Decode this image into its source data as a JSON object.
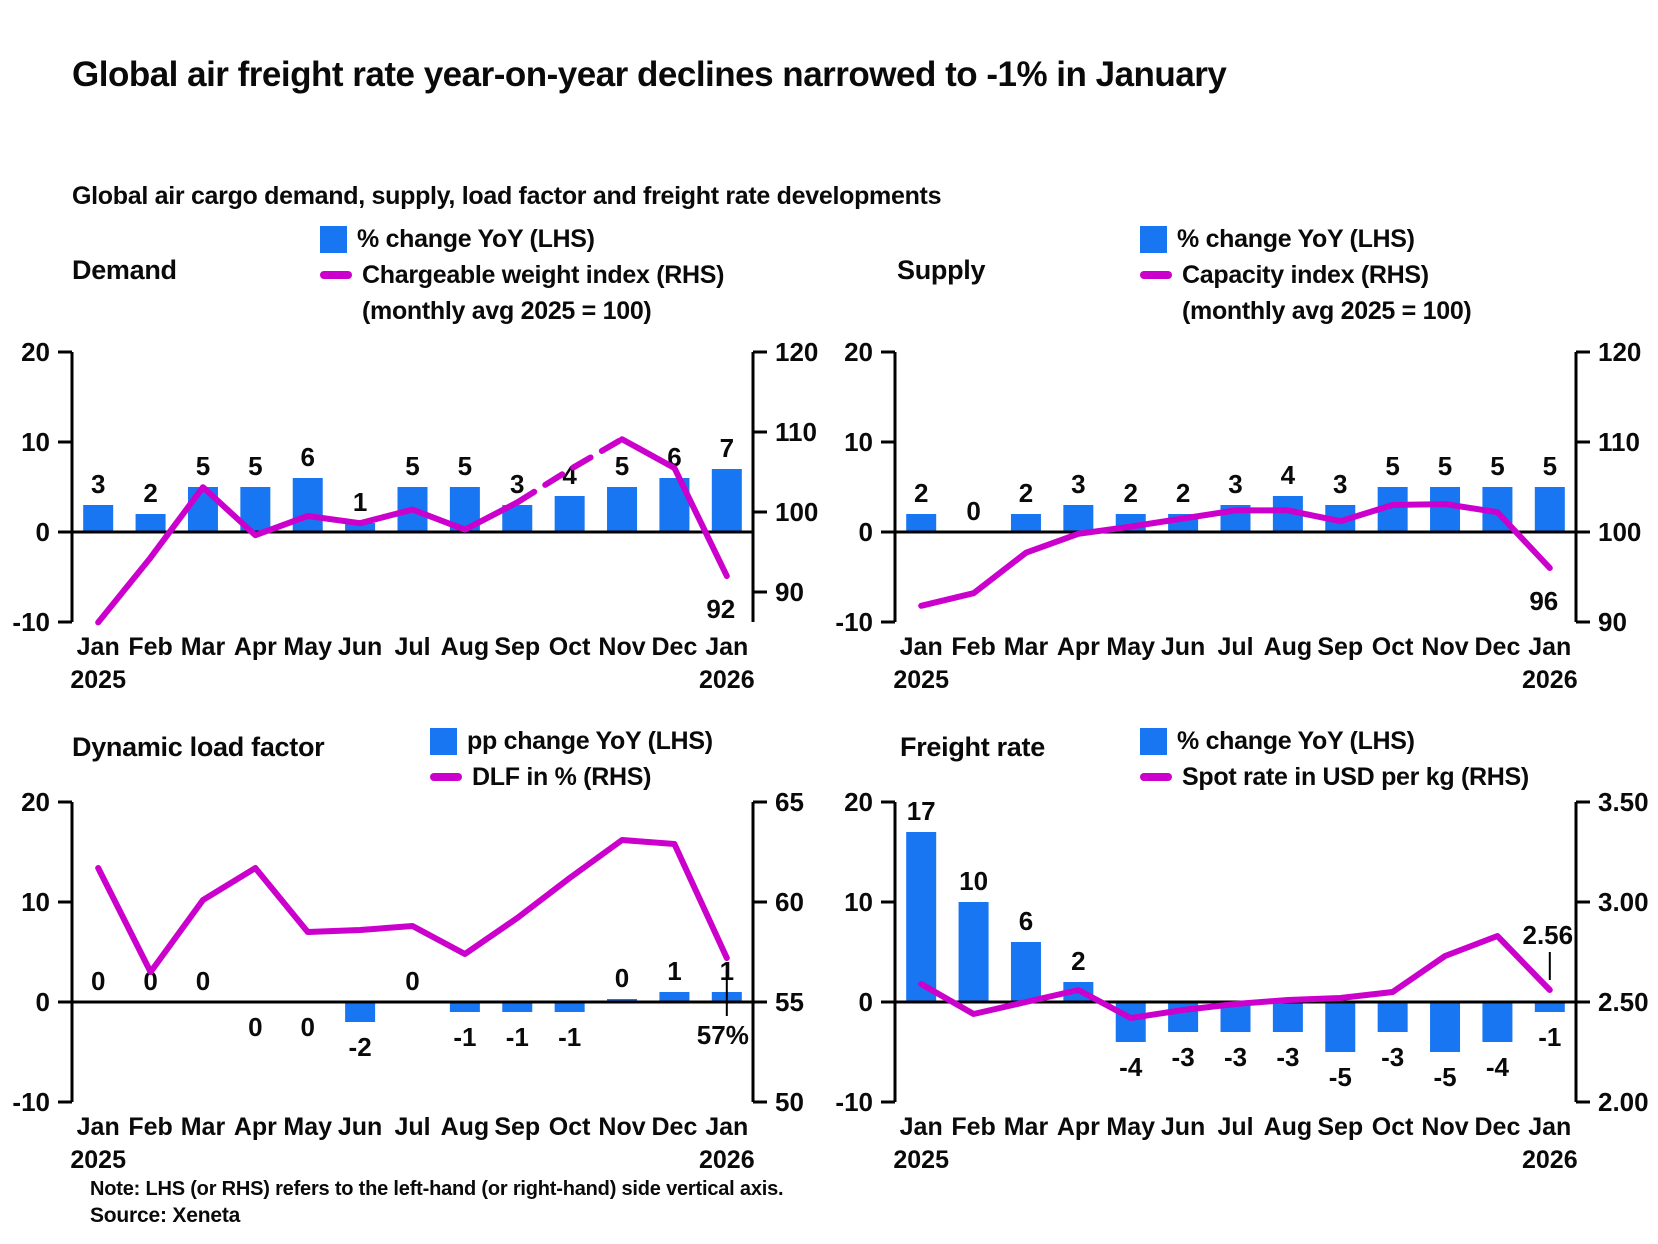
{
  "page": {
    "title": "Global air freight rate year-on-year declines narrowed to -1% in January",
    "subtitle": "Global air cargo demand, supply, load factor and freight rate developments",
    "note": "Note: LHS (or RHS) refers to the left-hand (or right-hand) side vertical axis.",
    "source": "Source: Xeneta"
  },
  "colors": {
    "bar": "#1876F2",
    "line": "#CC00CC",
    "axis": "#000000",
    "text": "#0A0A0A"
  },
  "chart_data": [
    {
      "id": "demand",
      "type": "bar+line",
      "title": "Demand",
      "legend": {
        "bar": "% change YoY (LHS)",
        "line": "Chargeable weight index (RHS)",
        "line_note": "(monthly avg 2025 = 100)"
      },
      "categories": [
        "Jan",
        "Feb",
        "Mar",
        "Apr",
        "May",
        "Jun",
        "Jul",
        "Aug",
        "Sep",
        "Oct",
        "Nov",
        "Dec",
        "Jan"
      ],
      "year_start": "2025",
      "year_end": "2026",
      "bars": {
        "name": "% change YoY (LHS)",
        "values": [
          3,
          2,
          5,
          5,
          6,
          1,
          5,
          5,
          3,
          4,
          5,
          6,
          7
        ],
        "labels": [
          "3",
          "2",
          "5",
          "5",
          "6",
          "1",
          "5",
          "5",
          "3",
          "4",
          "5",
          "6",
          "7"
        ],
        "label_below": [
          false,
          false,
          false,
          false,
          false,
          false,
          false,
          false,
          false,
          false,
          false,
          false,
          false
        ]
      },
      "line": {
        "name": "Chargeable weight index (RHS)",
        "values": [
          86.2,
          94.3,
          103.1,
          97.1,
          99.5,
          98.6,
          100.3,
          97.8,
          101.2,
          105.3,
          109.1,
          105.5,
          92
        ],
        "end_label": "92",
        "dashed_segment": [
          8,
          10
        ]
      },
      "lhs": {
        "ticks": [
          "20",
          "10",
          "0",
          "-10"
        ],
        "min": -10,
        "max": 20
      },
      "rhs": {
        "ticks": [
          "120",
          "110",
          "100",
          "90"
        ],
        "min": 90,
        "max": 120
      }
    },
    {
      "id": "supply",
      "type": "bar+line",
      "title": "Supply",
      "legend": {
        "bar": "% change YoY (LHS)",
        "line": "Capacity index (RHS)",
        "line_note": "(monthly avg 2025 = 100)"
      },
      "categories": [
        "Jan",
        "Feb",
        "Mar",
        "Apr",
        "May",
        "Jun",
        "Jul",
        "Aug",
        "Sep",
        "Oct",
        "Nov",
        "Dec",
        "Jan"
      ],
      "year_start": "2025",
      "year_end": "2026",
      "bars": {
        "name": "% change YoY (LHS)",
        "values": [
          2,
          0,
          2,
          3,
          2,
          2,
          3,
          4,
          3,
          5,
          5,
          5,
          5
        ],
        "labels": [
          "2",
          "0",
          "2",
          "3",
          "2",
          "2",
          "3",
          "4",
          "3",
          "5",
          "5",
          "5",
          "5"
        ],
        "label_below": [
          false,
          false,
          false,
          false,
          false,
          false,
          false,
          false,
          false,
          false,
          false,
          false,
          false
        ]
      },
      "line": {
        "name": "Capacity index (RHS)",
        "values": [
          91.8,
          93.2,
          97.7,
          99.8,
          100.6,
          101.5,
          102.4,
          102.4,
          101.2,
          103,
          103.1,
          102.2,
          96
        ],
        "end_label": "96"
      },
      "lhs": {
        "ticks": [
          "20",
          "10",
          "0",
          "-10"
        ],
        "min": -10,
        "max": 20
      },
      "rhs": {
        "ticks": [
          "120",
          "110",
          "100",
          "90"
        ],
        "min": 90,
        "max": 120
      }
    },
    {
      "id": "dlf",
      "type": "bar+line",
      "title": "Dynamic load factor",
      "legend": {
        "bar": "pp change YoY (LHS)",
        "line": "DLF in % (RHS)"
      },
      "categories": [
        "Jan",
        "Feb",
        "Mar",
        "Apr",
        "May",
        "Jun",
        "Jul",
        "Aug",
        "Sep",
        "Oct",
        "Nov",
        "Dec",
        "Jan"
      ],
      "year_start": "2025",
      "year_end": "2026",
      "bars": {
        "name": "pp change YoY (LHS)",
        "values": [
          0,
          0,
          0,
          0,
          0,
          -2,
          0,
          -1,
          -1,
          -1,
          0.3,
          1,
          1
        ],
        "labels": [
          "0",
          "0",
          "0",
          "0",
          "0",
          "-2",
          "0",
          "-1",
          "-1",
          "-1",
          "0",
          "1",
          "1"
        ],
        "label_below": [
          false,
          false,
          false,
          true,
          true,
          true,
          false,
          true,
          true,
          true,
          false,
          false,
          false
        ]
      },
      "line": {
        "name": "DLF in % (RHS)",
        "values": [
          61.7,
          56.5,
          60.1,
          61.7,
          58.5,
          58.6,
          58.8,
          57.4,
          59.2,
          61.2,
          63.1,
          62.9,
          57.2
        ],
        "end_label": "57%"
      },
      "lhs": {
        "ticks": [
          "20",
          "10",
          "0",
          "-10"
        ],
        "min": -10,
        "max": 20
      },
      "rhs": {
        "ticks": [
          "65",
          "60",
          "55",
          "50"
        ],
        "min": 50,
        "max": 65
      }
    },
    {
      "id": "freight",
      "type": "bar+line",
      "title": "Freight rate",
      "legend": {
        "bar": "% change YoY (LHS)",
        "line": "Spot rate in USD per kg (RHS)"
      },
      "categories": [
        "Jan",
        "Feb",
        "Mar",
        "Apr",
        "May",
        "Jun",
        "Jul",
        "Aug",
        "Sep",
        "Oct",
        "Nov",
        "Dec",
        "Jan"
      ],
      "year_start": "2025",
      "year_end": "2026",
      "bars": {
        "name": "% change YoY (LHS)",
        "values": [
          17,
          10,
          6,
          2,
          -4,
          -3,
          -3,
          -3,
          -5,
          -3,
          -5,
          -4,
          -1
        ],
        "labels": [
          "17",
          "10",
          "6",
          "2",
          "-4",
          "-3",
          "-3",
          "-3",
          "-5",
          "-3",
          "-5",
          "-4",
          "-1"
        ],
        "label_below": [
          false,
          false,
          false,
          false,
          true,
          true,
          true,
          true,
          true,
          true,
          true,
          true,
          true
        ]
      },
      "line": {
        "name": "Spot rate in USD per kg (RHS)",
        "values": [
          2.59,
          2.44,
          2.5,
          2.56,
          2.42,
          2.46,
          2.49,
          2.51,
          2.52,
          2.55,
          2.73,
          2.83,
          2.56
        ],
        "end_label": "2.56"
      },
      "lhs": {
        "ticks": [
          "20",
          "10",
          "0",
          "-10"
        ],
        "min": -10,
        "max": 20
      },
      "rhs": {
        "ticks": [
          "3.50",
          "3.00",
          "2.50",
          "2.00"
        ],
        "min": 2.0,
        "max": 3.5
      }
    }
  ]
}
